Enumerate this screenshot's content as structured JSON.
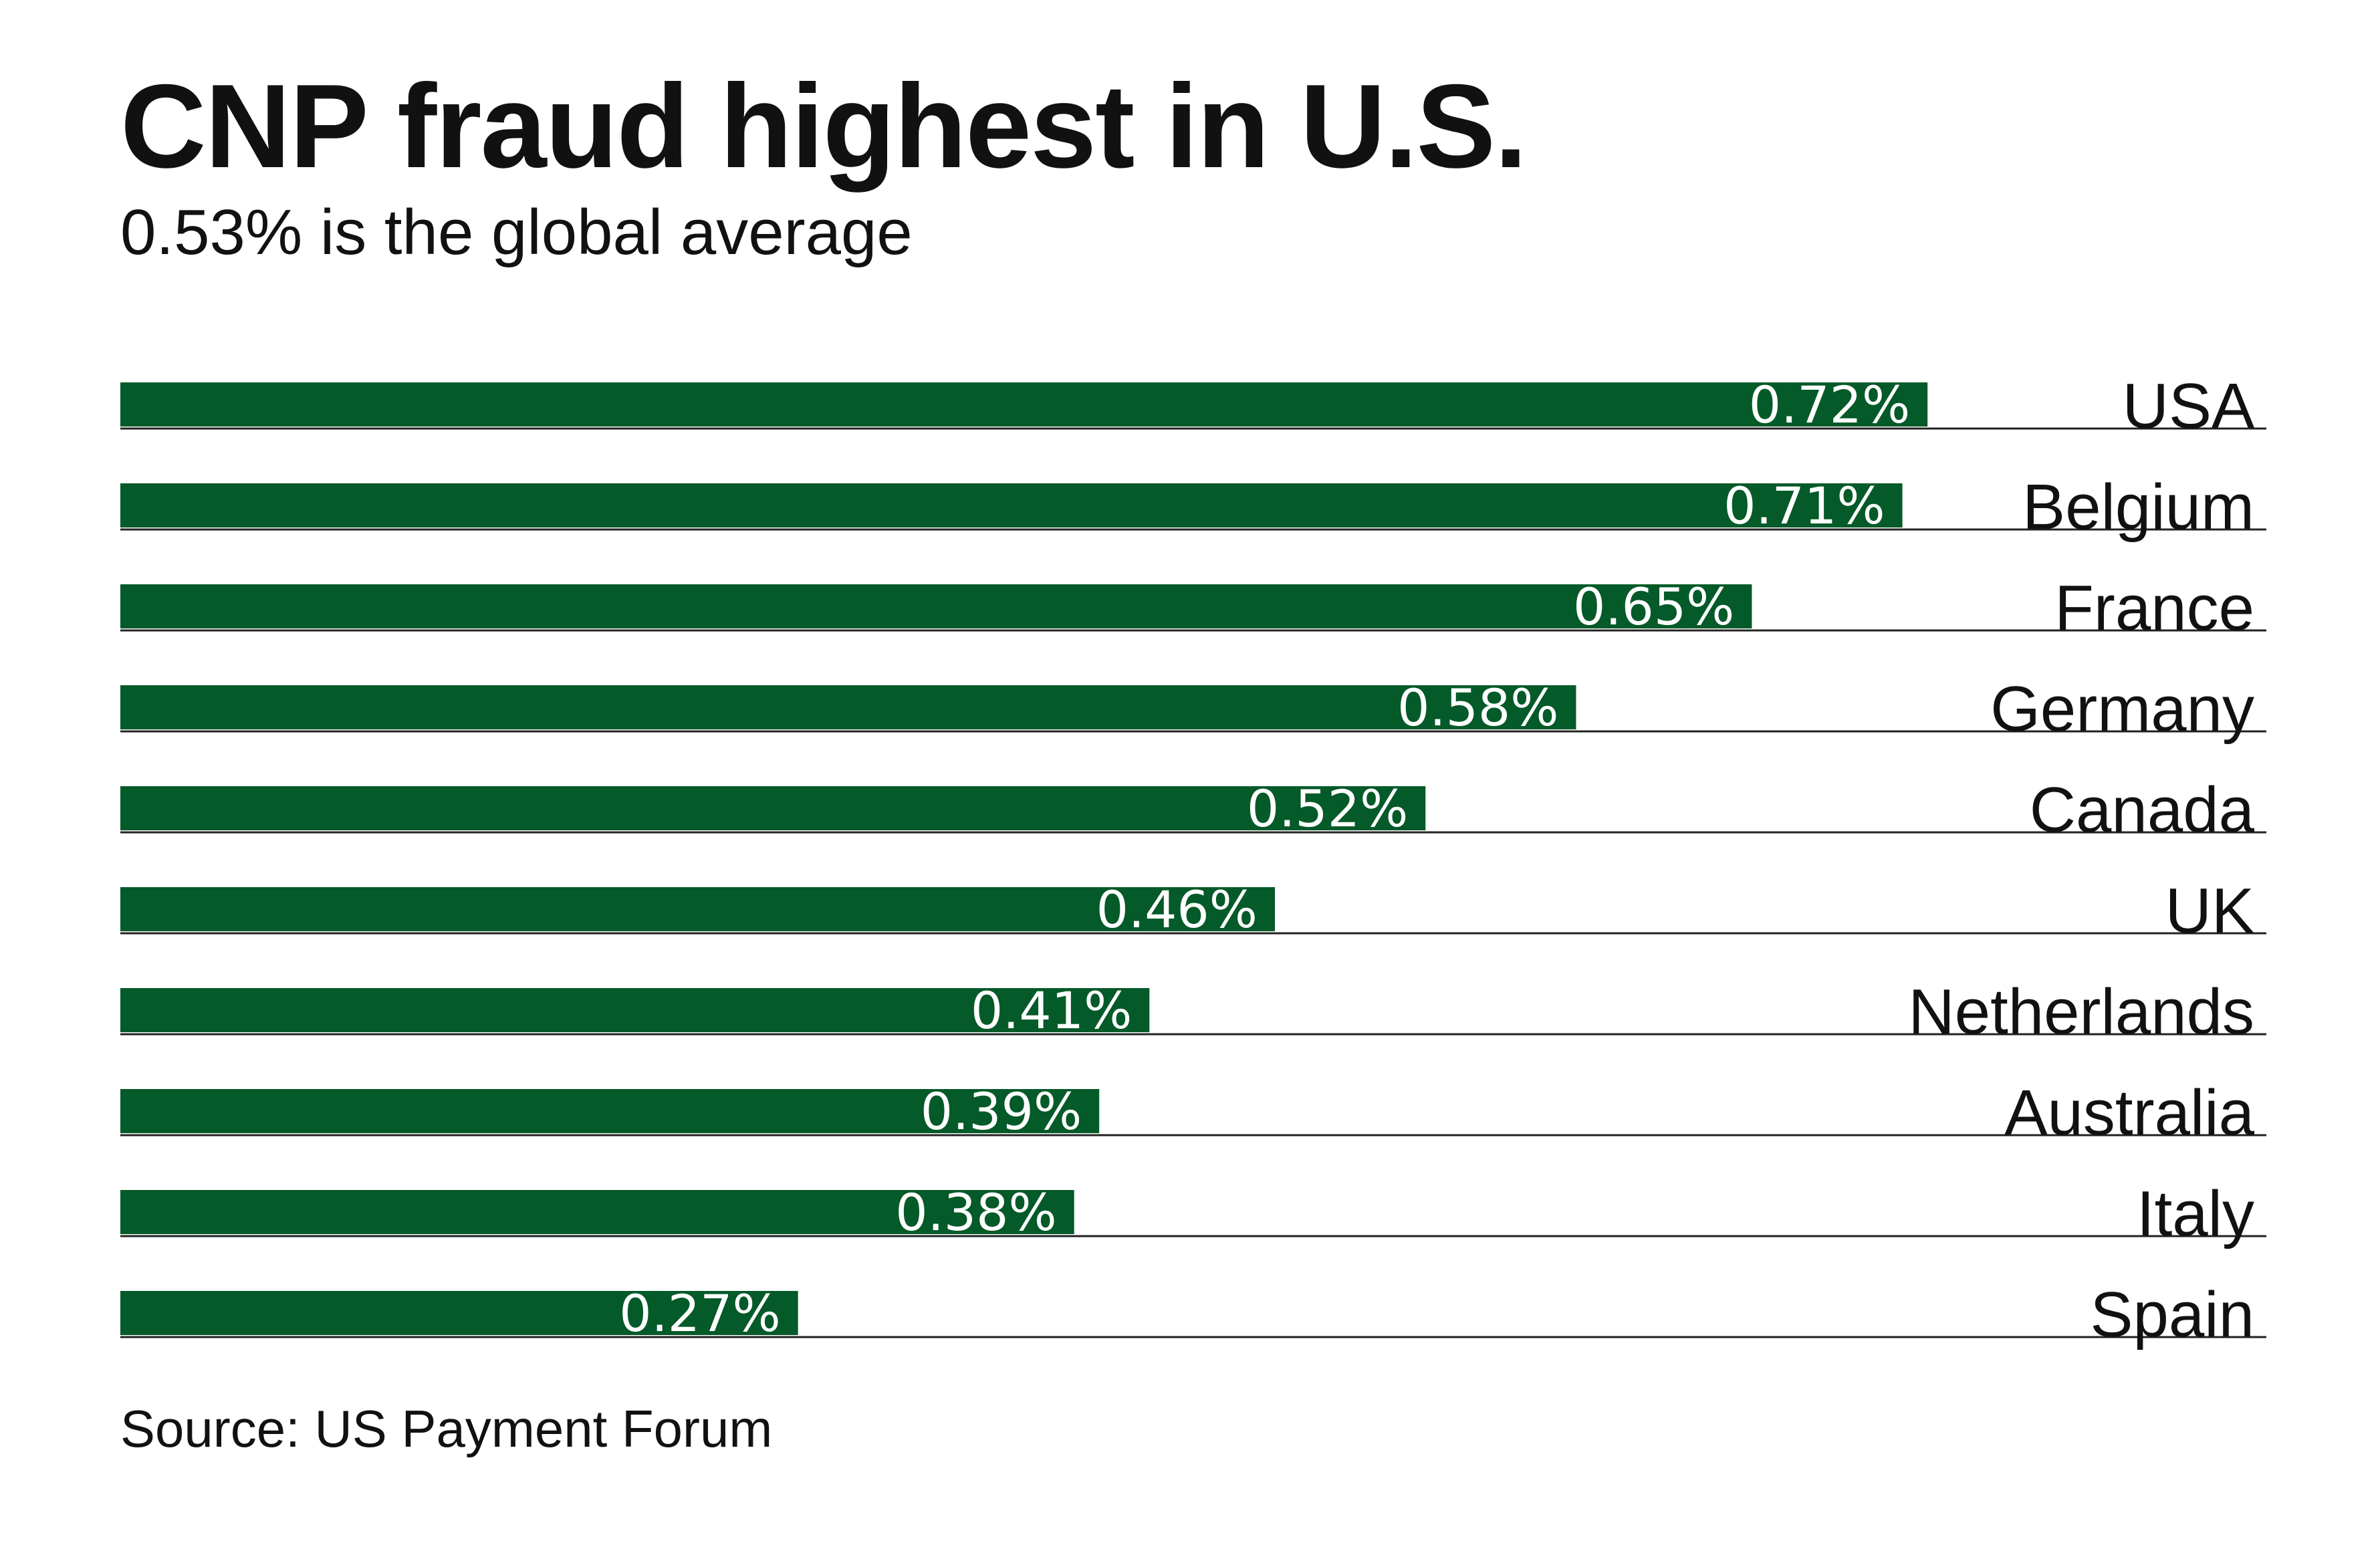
{
  "chart_data": {
    "type": "bar",
    "orientation": "horizontal",
    "title": "CNP fraud highest in U.S.",
    "subtitle": "0.53% is the global average",
    "source": "Source: US Payment Forum",
    "categories": [
      "USA",
      "Belgium",
      "France",
      "Germany",
      "Canada",
      "UK",
      "Netherlands",
      "Australia",
      "Italy",
      "Spain"
    ],
    "values": [
      0.72,
      0.71,
      0.65,
      0.58,
      0.52,
      0.46,
      0.41,
      0.39,
      0.38,
      0.27
    ],
    "value_labels": [
      "0.72%",
      "0.71%",
      "0.65%",
      "0.58%",
      "0.52%",
      "0.46%",
      "0.41%",
      "0.39%",
      "0.38%",
      "0.27%"
    ],
    "xlim": [
      0,
      0.855
    ],
    "grid": false,
    "legend": "none",
    "bar_color": "#045a28"
  }
}
